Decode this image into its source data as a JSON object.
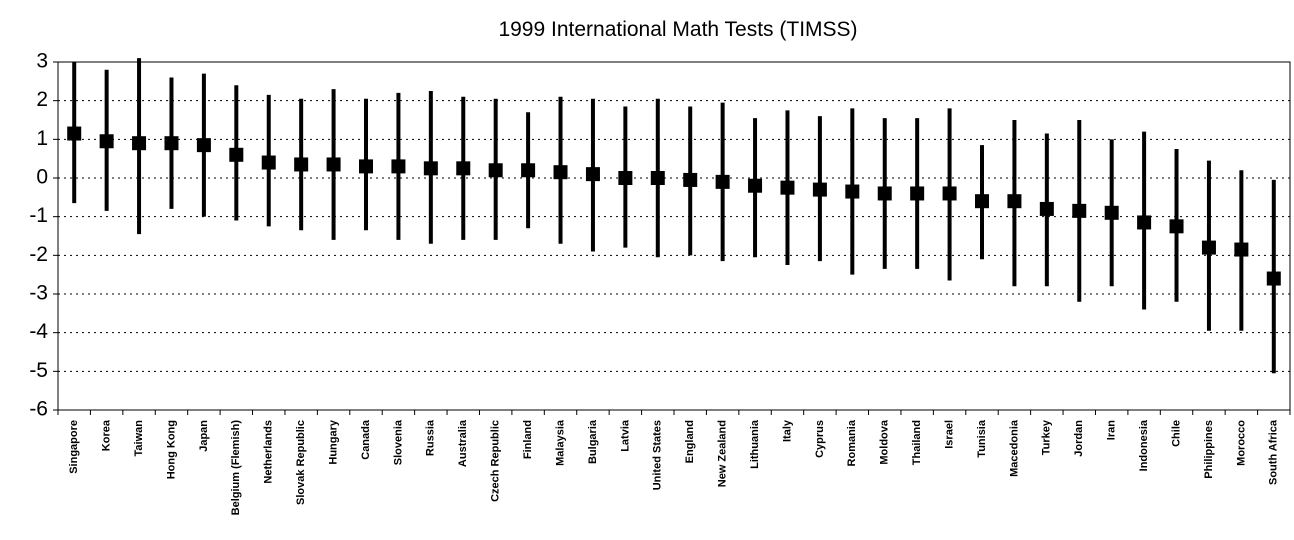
{
  "chart_data": {
    "type": "range",
    "title": "1999 International Math Tests (TIMSS)",
    "categories": [
      "Singapore",
      "Korea",
      "Taiwan",
      "Hong Kong",
      "Japan",
      "Belgium (Flemish)",
      "Netherlands",
      "Slovak Republic",
      "Hungary",
      "Canada",
      "Slovenia",
      "Russia",
      "Australia",
      "Czech Republic",
      "Finland",
      "Malaysia",
      "Bulgaria",
      "Latvia",
      "United States",
      "England",
      "New Zealand",
      "Lithuania",
      "Italy",
      "Cyprus",
      "Romania",
      "Moldova",
      "Thailand",
      "Israel",
      "Tunisia",
      "Macedonia",
      "Turkey",
      "Jordan",
      "Iran",
      "Indonesia",
      "Chile",
      "Philippines",
      "Morocco",
      "South Africa"
    ],
    "values": [
      1.15,
      0.95,
      0.9,
      0.9,
      0.85,
      0.6,
      0.4,
      0.35,
      0.35,
      0.3,
      0.3,
      0.25,
      0.25,
      0.2,
      0.2,
      0.15,
      0.1,
      0.0,
      0.0,
      -0.05,
      -0.1,
      -0.2,
      -0.25,
      -0.3,
      -0.35,
      -0.4,
      -0.4,
      -0.4,
      -0.6,
      -0.6,
      -0.8,
      -0.85,
      -0.9,
      -1.15,
      -1.25,
      -1.8,
      -1.85,
      -2.6
    ],
    "high": [
      3.0,
      2.8,
      3.1,
      2.6,
      2.7,
      2.4,
      2.15,
      2.05,
      2.3,
      2.05,
      2.2,
      2.25,
      2.1,
      2.05,
      1.7,
      2.1,
      2.05,
      1.85,
      2.05,
      1.85,
      1.95,
      1.55,
      1.75,
      1.6,
      1.8,
      1.55,
      1.55,
      1.8,
      0.85,
      1.5,
      1.15,
      1.5,
      1.0,
      1.2,
      0.75,
      0.45,
      0.2,
      -0.05
    ],
    "low": [
      -0.65,
      -0.85,
      -1.45,
      -0.8,
      -1.0,
      -1.1,
      -1.25,
      -1.35,
      -1.6,
      -1.35,
      -1.6,
      -1.7,
      -1.6,
      -1.6,
      -1.3,
      -1.7,
      -1.9,
      -1.8,
      -2.05,
      -2.0,
      -2.15,
      -2.05,
      -2.25,
      -2.15,
      -2.5,
      -2.35,
      -2.35,
      -2.65,
      -2.1,
      -2.8,
      -2.8,
      -3.2,
      -2.8,
      -3.4,
      -3.2,
      -3.95,
      -3.95,
      -5.05
    ],
    "color": "#000000",
    "ylim": [
      -6,
      3
    ],
    "yticks": [
      -6,
      -5,
      -4,
      -3,
      -2,
      -1,
      0,
      1,
      2,
      3
    ],
    "grid": true
  }
}
